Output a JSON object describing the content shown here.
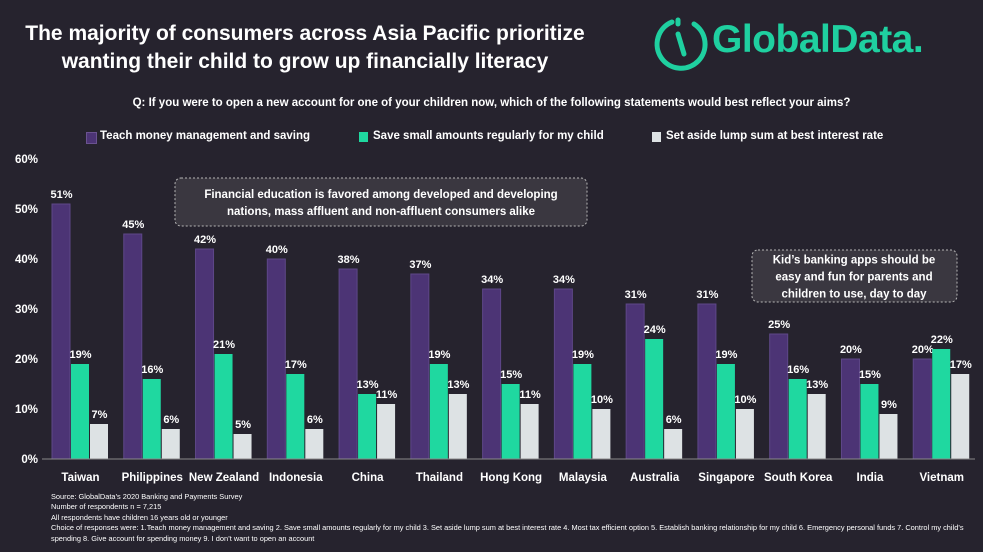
{
  "title_line1": "The majority of consumers across Asia Pacific prioritize",
  "title_line2": "wanting their child to grow up financially literacy",
  "brand": "GlobalData.",
  "question": "Q: If you were to open a new account for one of your children now, which of the following statements would best reflect your aims?",
  "colors": {
    "background": "#26232e",
    "series1": "#4c3475",
    "series2": "#1fd8a0",
    "series3": "#dde2e4",
    "brand": "#1fd0a0"
  },
  "chart_data": {
    "type": "bar",
    "categories": [
      "Taiwan",
      "Philippines",
      "New Zealand",
      "Indonesia",
      "China",
      "Thailand",
      "Hong Kong",
      "Malaysia",
      "Australia",
      "Singapore",
      "South Korea",
      "India",
      "Vietnam"
    ],
    "series": [
      {
        "name": "Teach money management and saving",
        "values": [
          51,
          45,
          42,
          40,
          38,
          37,
          34,
          34,
          31,
          31,
          25,
          20,
          20
        ]
      },
      {
        "name": "Save small amounts regularly for my child",
        "values": [
          19,
          16,
          21,
          17,
          13,
          19,
          15,
          19,
          24,
          19,
          16,
          15,
          22
        ]
      },
      {
        "name": "Set aside lump sum at best interest rate",
        "values": [
          7,
          6,
          5,
          6,
          11,
          13,
          11,
          10,
          6,
          10,
          13,
          9,
          17
        ]
      }
    ],
    "value_labels": [
      [
        "51%",
        "45%",
        "42%",
        "40%",
        "38%",
        "37%",
        "34%",
        "34%",
        "31%",
        "31%",
        "25%",
        "20%",
        "20%"
      ],
      [
        "19%",
        "16%",
        "21%",
        "17%",
        "13%",
        "19%",
        "15%",
        "19%",
        "24%",
        "19%",
        "16%",
        "15%",
        "22%"
      ],
      [
        "7%",
        "6%",
        "5%",
        "6%",
        "11%",
        "13%",
        "11%",
        "10%",
        "6%",
        "10%",
        "13%",
        "9%",
        "17%"
      ]
    ],
    "yticks": [
      "0%",
      "10%",
      "20%",
      "30%",
      "40%",
      "50%",
      "60%"
    ],
    "ylim": [
      0,
      60
    ],
    "grid": false,
    "legend_position": "top",
    "annotations": [
      {
        "lines": [
          "Financial education is favored among developed and developing",
          "nations, mass affluent and non-affluent consumers alike"
        ]
      },
      {
        "lines": [
          "Kid’s banking apps should be",
          "easy and fun for parents and",
          "children to use, day to day"
        ]
      }
    ]
  },
  "footnotes": [
    "Source: GlobalData’s 2020 Banking and Payments Survey",
    "Number of respondents n = 7,215",
    "All respondents have children 16 years old or younger",
    "Choice of responses were: 1.Teach money management and saving 2. Save small amounts regularly for my child 3. Set aside lump sum at best interest rate 4. Most tax efficient option 5. Establish banking relationship for my child 6. Emergency personal funds 7. Control my child’s spending 8. Give account for spending money 9. I don’t want to open an account"
  ]
}
